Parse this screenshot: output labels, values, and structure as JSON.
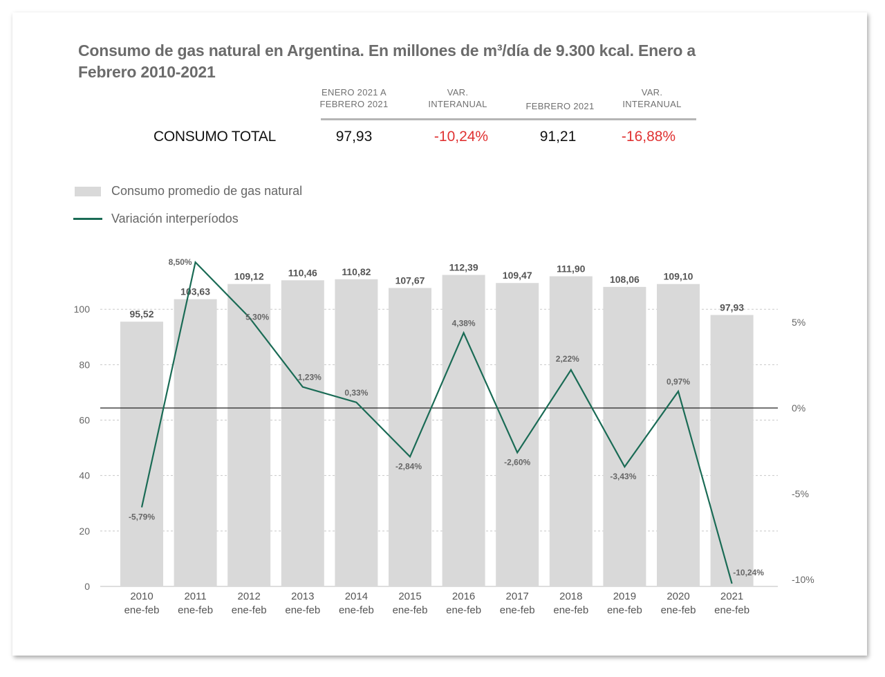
{
  "title": "Consumo de gas natural en Argentina. En millones de m³/día de 9.300 kcal. Enero a Febrero 2010-2021",
  "summary": {
    "headers": [
      "ENERO 2021 A FEBRERO 2021",
      "VAR. INTERANUAL",
      "FEBRERO 2021",
      "VAR. INTERANUAL"
    ],
    "row_label": "CONSUMO TOTAL",
    "values": [
      "97,93",
      "-10,24%",
      "91,21",
      "-16,88%"
    ],
    "colors": {
      "neutral": "#111111",
      "negative": "#e03232"
    }
  },
  "legend": {
    "bar": "Consumo promedio de gas natural",
    "line": "Variación interperíodos"
  },
  "colors": {
    "bar": "#d9d9d9",
    "line": "#1a6b55",
    "zero_line": "#222222",
    "grid": "#c8c8c8"
  },
  "chart_data": {
    "type": "bar",
    "categories": [
      "2010",
      "2011",
      "2012",
      "2013",
      "2014",
      "2015",
      "2016",
      "2017",
      "2018",
      "2019",
      "2020",
      "2021"
    ],
    "category_sublabel": "ene-feb",
    "series": [
      {
        "name": "Consumo promedio de gas natural",
        "type": "bar",
        "axis": "left",
        "values": [
          95.52,
          103.63,
          109.12,
          110.46,
          110.82,
          107.67,
          112.39,
          109.47,
          111.9,
          108.06,
          109.1,
          97.93
        ],
        "labels": [
          "95,52",
          "103,63",
          "109,12",
          "110,46",
          "110,82",
          "107,67",
          "112,39",
          "109,47",
          "111,90",
          "108,06",
          "109,10",
          "97,93"
        ]
      },
      {
        "name": "Variación interperíodos",
        "type": "line",
        "axis": "right",
        "values": [
          -5.79,
          8.5,
          5.3,
          1.23,
          0.33,
          -2.84,
          4.38,
          -2.6,
          2.22,
          -3.43,
          0.97,
          -10.24
        ],
        "labels": [
          "-5,79%",
          "8,50%",
          "5,30%",
          "1,23%",
          "0,33%",
          "-2,84%",
          "4,38%",
          "-2,60%",
          "2,22%",
          "-3,43%",
          "0,97%",
          "-10,24%"
        ]
      }
    ],
    "y_left": {
      "ticks": [
        0,
        20,
        40,
        60,
        80,
        100
      ],
      "tick_labels": [
        "0",
        "20",
        "40",
        "60",
        "80",
        "100"
      ],
      "range": [
        0,
        120
      ]
    },
    "y_right": {
      "ticks": [
        -10,
        -5,
        0,
        5
      ],
      "tick_labels": [
        "-10%",
        "-5%",
        "0%",
        "5%"
      ],
      "range": [
        -10,
        5
      ]
    },
    "grid": true,
    "legend_position": "top-left"
  }
}
